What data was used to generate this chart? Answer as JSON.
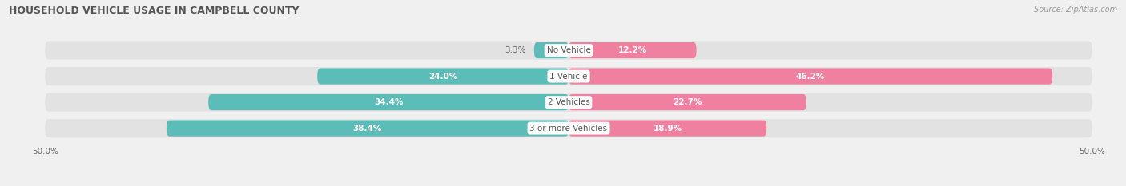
{
  "title": "HOUSEHOLD VEHICLE USAGE IN CAMPBELL COUNTY",
  "source": "Source: ZipAtlas.com",
  "categories": [
    "No Vehicle",
    "1 Vehicle",
    "2 Vehicles",
    "3 or more Vehicles"
  ],
  "owner_values": [
    3.3,
    24.0,
    34.4,
    38.4
  ],
  "renter_values": [
    12.2,
    46.2,
    22.7,
    18.9
  ],
  "owner_color": "#5bbcb8",
  "renter_color": "#f080a0",
  "background_color": "#f0f0f0",
  "bar_background_color": "#e2e2e2",
  "xlim_left": -50,
  "xlim_right": 50,
  "title_fontsize": 9,
  "source_fontsize": 7,
  "label_fontsize": 7.5,
  "category_fontsize": 7.5,
  "bar_height": 0.62,
  "bar_spacing": 1.0,
  "inside_label_threshold": 8.0
}
